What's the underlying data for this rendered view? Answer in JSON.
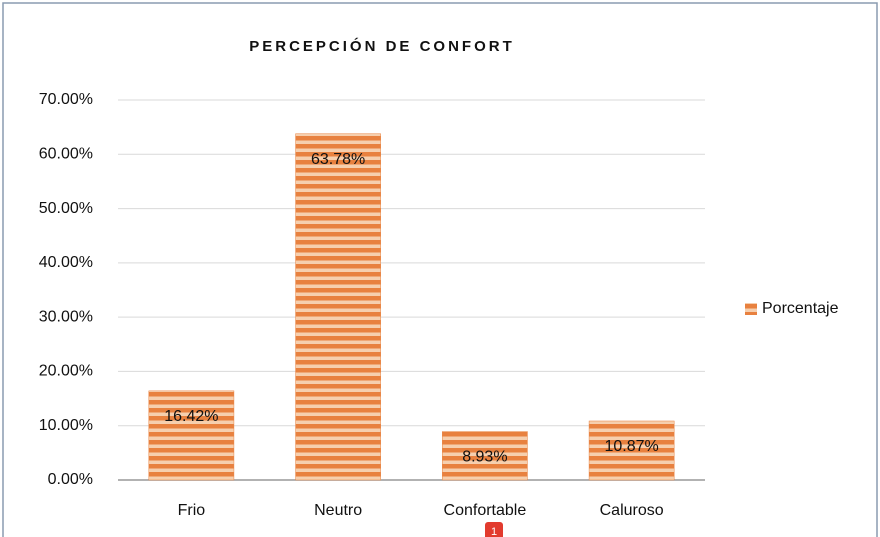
{
  "chart_data": {
    "type": "bar",
    "title": "PERCEPCIÓN DE CONFORT",
    "categories": [
      "Frio",
      "Neutro",
      "Confortable",
      "Caluroso"
    ],
    "series": [
      {
        "name": "Porcentaje",
        "color": "#e8813f",
        "values": [
          16.42,
          63.78,
          8.93,
          10.87
        ],
        "value_labels": [
          "16.42%",
          "63.78%",
          "8.93%",
          "10.87%"
        ]
      }
    ],
    "ylim": [
      0,
      70
    ],
    "yticks": [
      {
        "value": 0,
        "label": "0.00%"
      },
      {
        "value": 10,
        "label": "10.00%"
      },
      {
        "value": 20,
        "label": "20.00%"
      },
      {
        "value": 30,
        "label": "30.00%"
      },
      {
        "value": 40,
        "label": "40.00%"
      },
      {
        "value": 50,
        "label": "50.00%"
      },
      {
        "value": 60,
        "label": "60.00%"
      },
      {
        "value": 70,
        "label": "70.00%"
      }
    ],
    "grid": true,
    "legend": "right",
    "annotations": [
      "1"
    ]
  }
}
